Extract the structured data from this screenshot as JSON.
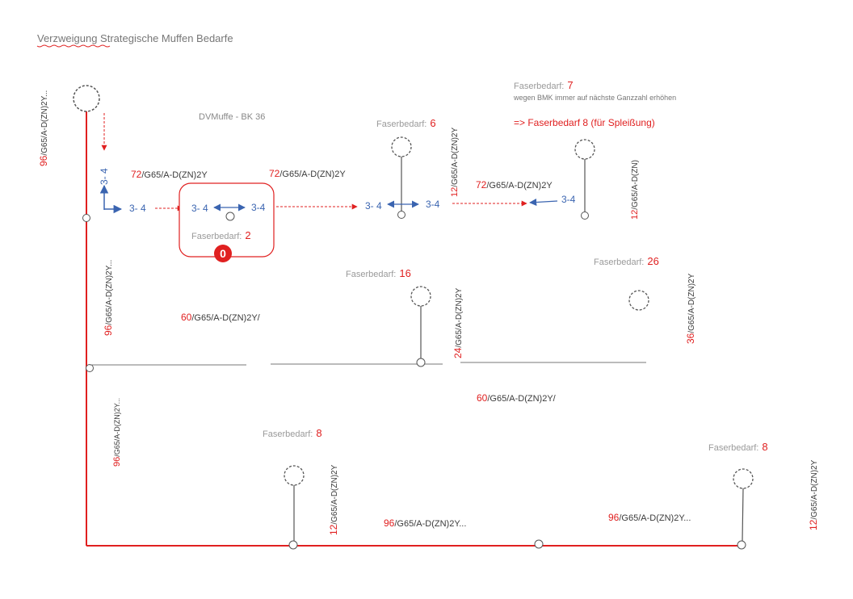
{
  "page_title": "Verzweigung Strategische Muffen Bedarfe",
  "dvm_label": "DVMuffe - BK 36",
  "colors": {
    "trunk": "#e02020",
    "branch": "#777777",
    "arrow_blue": "#3a64b0",
    "red_text": "#e02020"
  },
  "annotation": {
    "faserbedarf_label": "Faserbedarf:",
    "faserbedarf_value": "7",
    "note": "wegen BMK immer auf nächste Ganzzahl erhöhen",
    "result": "=> Faserbedarf 8 (für Spleißung)"
  },
  "muffe_box": {
    "port_left": "3- 4",
    "port_right": "3-4",
    "faserbedarf_label": "Faserbedarf:",
    "faserbedarf_value": "2",
    "badge": "0"
  },
  "ports": {
    "vertical": "3- 4",
    "left_in": "3- 4",
    "mid_left": "3- 4",
    "mid_right": "3-4",
    "right": "3-4"
  },
  "cables": {
    "trunk_top_num": "96",
    "trunk_top_rest": "/G65/A-D(ZN)2Y...",
    "trunk_mid_num": "96",
    "trunk_mid_rest": "/G65/A-D(ZN)2Y...",
    "trunk_low_num": "96",
    "trunk_low_rest": "/G65/A-D(ZN)2Y...",
    "feed_num": "72",
    "feed_rest": "/G65/A-D(ZN)2Y",
    "box_out_num": "72",
    "box_out_rest": "/G65/A-D(ZN)2Y",
    "to_right_num": "72",
    "to_right_rest": "/G65/A-D(ZN)2Y",
    "drop_6_num": "12",
    "drop_6_rest": "/G65/A-D(ZN)2Y",
    "drop_7_num": "12",
    "drop_7_rest": "/G65/A-D(ZN)",
    "branch_left_num": "60",
    "branch_left_rest": "/G65/A-D(ZN)2Y/",
    "drop_16_num": "24",
    "drop_16_rest": "/G65/A-D(ZN)2Y",
    "drop_26_num": "36",
    "drop_26_rest": "/G65/A-D(ZN)2Y",
    "branch_right_num": "60",
    "branch_right_rest": "/G65/A-D(ZN)2Y/",
    "drop_8a_num": "12",
    "drop_8a_rest": "/G65/A-D(ZN)2Y",
    "bottom_mid_num": "96",
    "bottom_mid_rest": "/G65/A-D(ZN)2Y...",
    "bottom_right_num": "96",
    "bottom_right_rest": "/G65/A-D(ZN)2Y...",
    "drop_8b_num": "12",
    "drop_8b_rest": "/G65/A-D(ZN)2Y"
  },
  "nodes": {
    "fb6_label": "Faserbedarf:",
    "fb6_value": "6",
    "fb16_label": "Faserbedarf:",
    "fb16_value": "16",
    "fb26_label": "Faserbedarf:",
    "fb26_value": "26",
    "fb8a_label": "Faserbedarf:",
    "fb8a_value": "8",
    "fb8b_label": "Faserbedarf:",
    "fb8b_value": "8"
  }
}
